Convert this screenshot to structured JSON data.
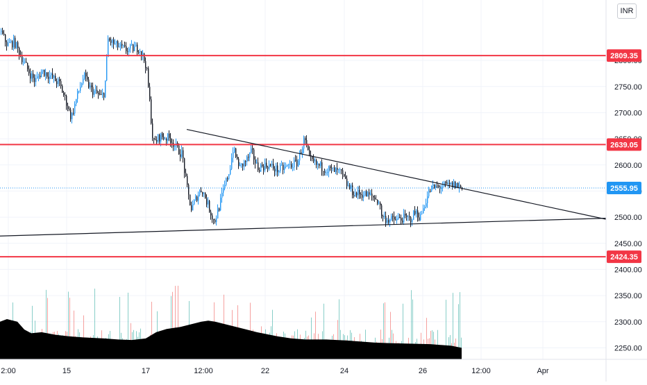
{
  "currency": "INR",
  "chart_data": {
    "type": "candlestick",
    "colors": {
      "up": "#2196f3",
      "down": "#131722",
      "level_line": "#f23645",
      "last_price": "#2196f3",
      "trendline": "#131722",
      "volume_up": "#26a69a",
      "volume_down": "#ef5350",
      "volume_area": "#000000",
      "grid": "#f0f3fa",
      "axis_text": "#131722"
    },
    "y_axis": {
      "range": [
        2228,
        2909
      ],
      "ticks": [
        "2400.00",
        "2450.00",
        "2500.00",
        "2550.00",
        "2600.00",
        "2650.00",
        "2700.00",
        "2750.00",
        "2800.00",
        "2250.00",
        "2300.00",
        "2350.00"
      ]
    },
    "x_axis": {
      "labels": [
        "2:00",
        "15",
        "17",
        "12:00",
        "22",
        "24",
        "26",
        "12:00",
        "Apr"
      ]
    },
    "horizontal_levels": [
      {
        "value": 2809.35,
        "label": "2809.35"
      },
      {
        "value": 2639.05,
        "label": "2639.05"
      },
      {
        "value": 2424.35,
        "label": "2424.35"
      }
    ],
    "last_price": {
      "value": 2555.95,
      "label": "2555.95"
    },
    "trendlines": [
      {
        "from": [
          269,
          2668
        ],
        "to": [
          873,
          2496
        ]
      },
      {
        "from": [
          0,
          2464
        ],
        "to": [
          873,
          2498
        ]
      }
    ],
    "path": [
      [
        0,
        2855
      ],
      [
        10,
        2830
      ],
      [
        20,
        2835
      ],
      [
        40,
        2780
      ],
      [
        50,
        2760
      ],
      [
        60,
        2780
      ],
      [
        72,
        2770
      ],
      [
        85,
        2755
      ],
      [
        95,
        2720
      ],
      [
        102,
        2690
      ],
      [
        110,
        2730
      ],
      [
        120,
        2770
      ],
      [
        130,
        2745
      ],
      [
        145,
        2730
      ],
      [
        150,
        2740
      ],
      [
        155,
        2840
      ],
      [
        165,
        2830
      ],
      [
        180,
        2820
      ],
      [
        200,
        2825
      ],
      [
        210,
        2790
      ],
      [
        215,
        2720
      ],
      [
        220,
        2640
      ],
      [
        230,
        2655
      ],
      [
        245,
        2650
      ],
      [
        255,
        2630
      ],
      [
        262,
        2620
      ],
      [
        268,
        2560
      ],
      [
        275,
        2515
      ],
      [
        283,
        2540
      ],
      [
        290,
        2555
      ],
      [
        300,
        2520
      ],
      [
        308,
        2490
      ],
      [
        315,
        2520
      ],
      [
        322,
        2555
      ],
      [
        330,
        2590
      ],
      [
        335,
        2630
      ],
      [
        345,
        2595
      ],
      [
        355,
        2610
      ],
      [
        362,
        2625
      ],
      [
        370,
        2595
      ],
      [
        385,
        2600
      ],
      [
        400,
        2590
      ],
      [
        415,
        2598
      ],
      [
        428,
        2605
      ],
      [
        438,
        2650
      ],
      [
        445,
        2610
      ],
      [
        455,
        2600
      ],
      [
        470,
        2592
      ],
      [
        490,
        2585
      ],
      [
        500,
        2560
      ],
      [
        510,
        2545
      ],
      [
        520,
        2545
      ],
      [
        535,
        2540
      ],
      [
        545,
        2530
      ],
      [
        550,
        2500
      ],
      [
        560,
        2495
      ],
      [
        570,
        2495
      ],
      [
        580,
        2498
      ],
      [
        590,
        2496
      ],
      [
        598,
        2510
      ],
      [
        605,
        2500
      ],
      [
        612,
        2530
      ],
      [
        620,
        2555
      ],
      [
        632,
        2558
      ],
      [
        645,
        2560
      ],
      [
        655,
        2562
      ],
      [
        665,
        2556
      ]
    ],
    "volume_area": [
      [
        0,
        2300
      ],
      [
        10,
        2305
      ],
      [
        25,
        2300
      ],
      [
        35,
        2285
      ],
      [
        45,
        2278
      ],
      [
        60,
        2280
      ],
      [
        80,
        2275
      ],
      [
        100,
        2272
      ],
      [
        120,
        2270
      ],
      [
        150,
        2268
      ],
      [
        170,
        2266
      ],
      [
        190,
        2265
      ],
      [
        210,
        2268
      ],
      [
        225,
        2280
      ],
      [
        240,
        2286
      ],
      [
        260,
        2290
      ],
      [
        275,
        2295
      ],
      [
        290,
        2300
      ],
      [
        300,
        2302
      ],
      [
        310,
        2300
      ],
      [
        325,
        2295
      ],
      [
        340,
        2290
      ],
      [
        355,
        2285
      ],
      [
        370,
        2280
      ],
      [
        385,
        2276
      ],
      [
        400,
        2272
      ],
      [
        420,
        2268
      ],
      [
        440,
        2266
      ],
      [
        470,
        2266
      ],
      [
        500,
        2264
      ],
      [
        520,
        2262
      ],
      [
        540,
        2260
      ],
      [
        560,
        2259
      ],
      [
        590,
        2258
      ],
      [
        620,
        2257
      ],
      [
        650,
        2254
      ],
      [
        665,
        2250
      ]
    ]
  }
}
